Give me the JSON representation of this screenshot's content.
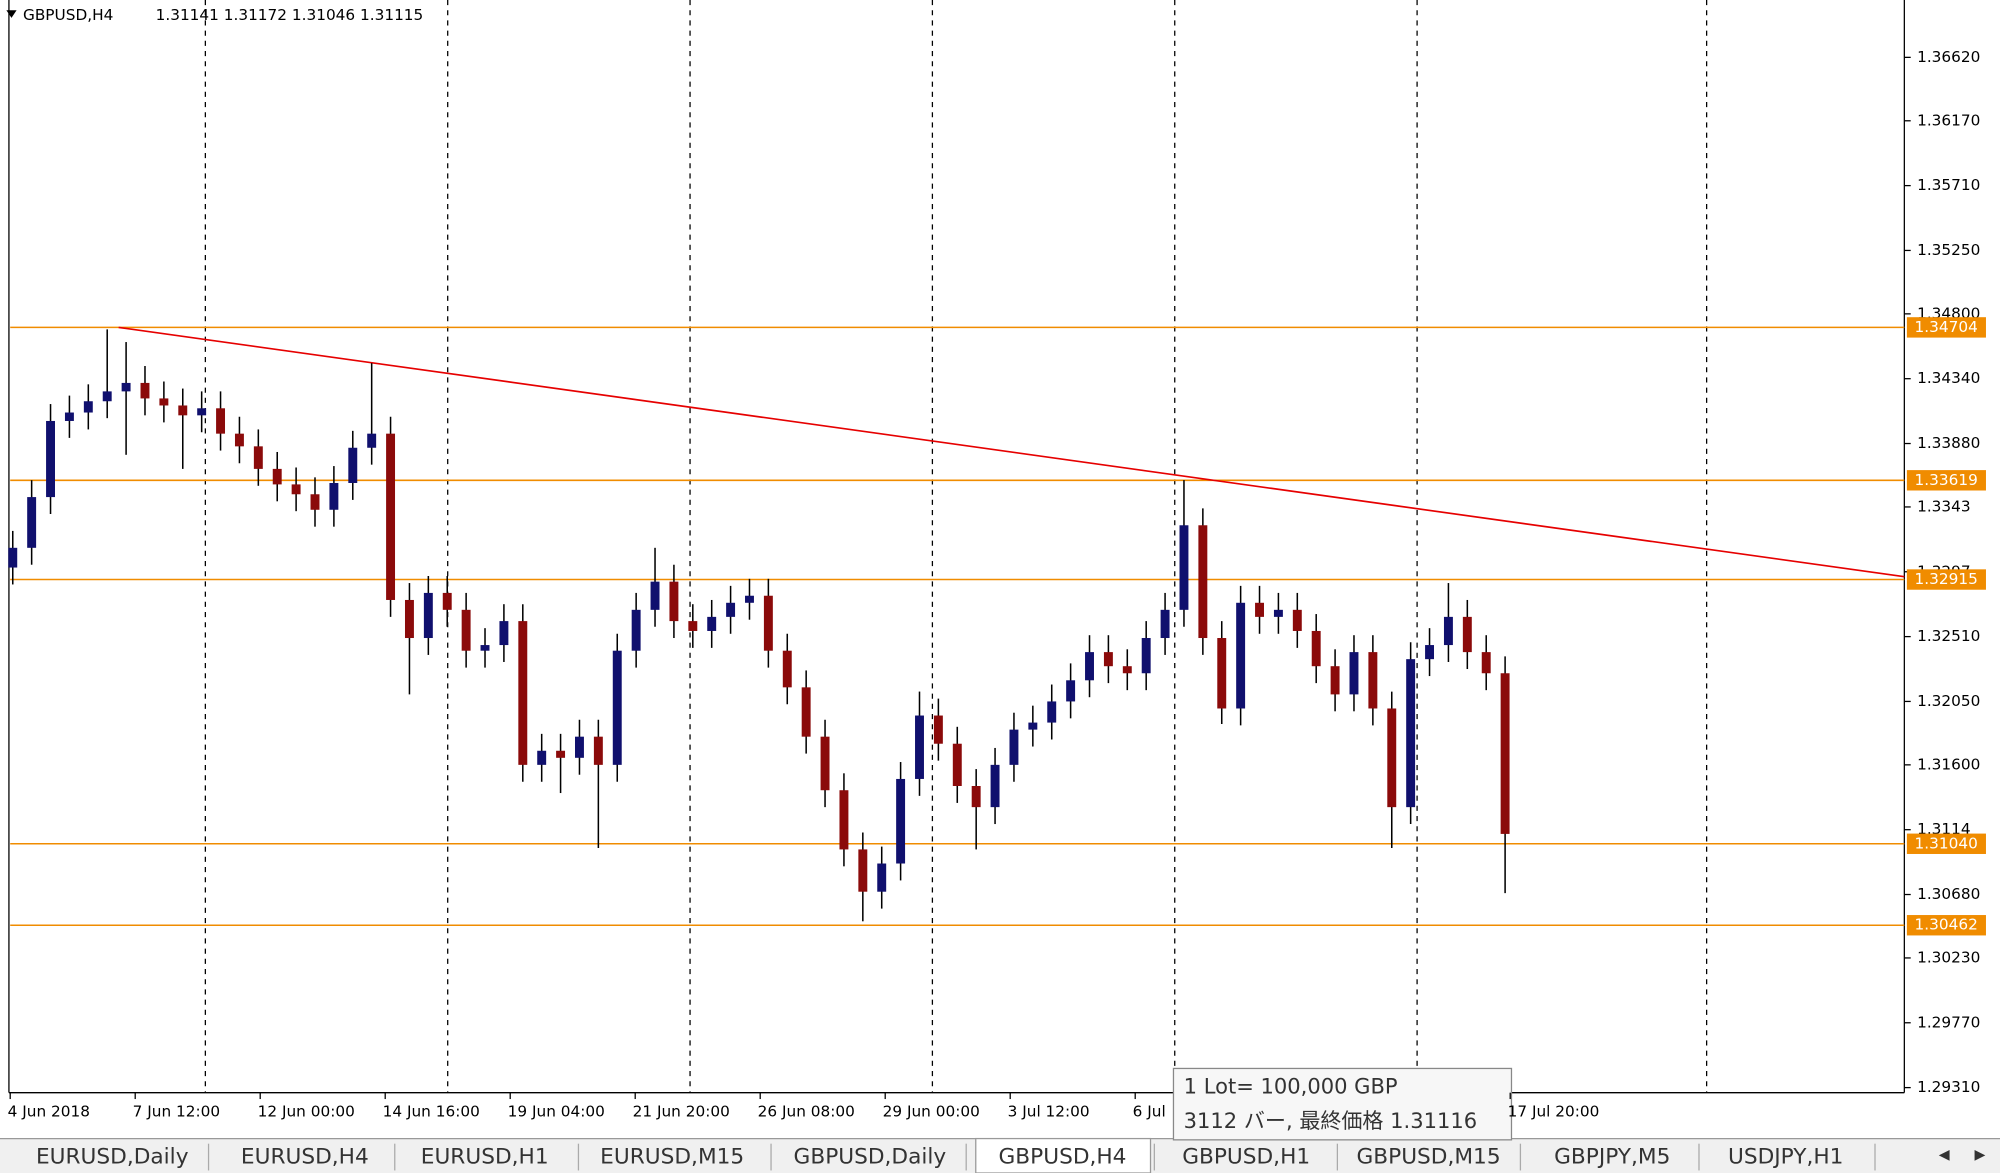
{
  "header": {
    "symbol": "GBPUSD,H4",
    "ohlc": "1.31141 1.31172 1.31046 1.31115"
  },
  "chart": {
    "ylim": [
      1.29274,
      1.37027
    ],
    "yticks": [
      {
        "value": 1.3662,
        "label": "1.36620"
      },
      {
        "value": 1.3617,
        "label": "1.36170"
      },
      {
        "value": 1.3571,
        "label": "1.35710"
      },
      {
        "value": 1.3525,
        "label": "1.35250"
      },
      {
        "value": 1.348,
        "label": "1.34800"
      },
      {
        "value": 1.3434,
        "label": "1.34340"
      },
      {
        "value": 1.3388,
        "label": "1.33880"
      },
      1.3343,
      1.3297,
      {
        "value": 1.3251,
        "label": "1.32510"
      },
      {
        "value": 1.3205,
        "label": "1.32050"
      },
      {
        "value": 1.316,
        "label": "1.31600"
      },
      1.3114,
      {
        "value": 1.3068,
        "label": "1.30680"
      },
      {
        "value": 1.3023,
        "label": "1.30230"
      },
      {
        "value": 1.2977,
        "label": "1.29770"
      },
      {
        "value": 1.2931,
        "label": "1.29310"
      }
    ],
    "time_labels": [
      "4 Jun 2018",
      "7 Jun 12:00",
      "12 Jun 00:00",
      "14 Jun 16:00",
      "19 Jun 04:00",
      "21 Jun 20:00",
      "26 Jun 08:00",
      "29 Jun 00:00",
      "3 Jul 12:00",
      "6 Jul",
      null,
      null,
      "17 Jul 20:00"
    ],
    "bull_color": "#10106e",
    "bear_color": "#8b0a0a",
    "open": [
      1.33,
      1.3314,
      1.335,
      1.3404,
      1.341,
      1.3418,
      1.3425,
      1.3431,
      1.342,
      1.3415,
      1.3408,
      1.3413,
      1.3395,
      1.3386,
      1.337,
      1.3359,
      1.3352,
      1.3341,
      1.336,
      1.3385,
      1.3395,
      1.3277,
      1.325,
      1.3282,
      1.327,
      1.3241,
      1.3245,
      1.3262,
      1.316,
      1.317,
      1.3165,
      1.318,
      1.316,
      1.3241,
      1.327,
      1.329,
      1.3262,
      1.3255,
      1.3265,
      1.3275,
      1.328,
      1.3241,
      1.3215,
      1.318,
      1.3142,
      1.31,
      1.307,
      1.309,
      1.315,
      1.3195,
      1.3175,
      1.3145,
      1.313,
      1.316,
      1.3185,
      1.319,
      1.3205,
      1.322,
      1.324,
      1.323,
      1.3225,
      1.325,
      1.327,
      1.333,
      1.325,
      1.32,
      1.3275,
      1.3265,
      1.327,
      1.3255,
      1.323,
      1.321,
      1.324,
      1.32,
      1.313,
      1.3235,
      1.3245,
      1.3265,
      1.324,
      1.3225
    ],
    "high": [
      1.3326,
      1.3362,
      1.3416,
      1.3422,
      1.343,
      1.3469,
      1.346,
      1.3443,
      1.3432,
      1.3427,
      1.3425,
      1.3425,
      1.3407,
      1.3398,
      1.3382,
      1.3371,
      1.3364,
      1.3372,
      1.3397,
      1.3445,
      1.3407,
      1.3289,
      1.3294,
      1.3294,
      1.3282,
      1.3257,
      1.3274,
      1.3274,
      1.3182,
      1.3182,
      1.3192,
      1.3192,
      1.3253,
      1.3282,
      1.3314,
      1.3302,
      1.3274,
      1.3277,
      1.3287,
      1.3292,
      1.3292,
      1.3253,
      1.3227,
      1.3192,
      1.3154,
      1.3112,
      1.3102,
      1.3162,
      1.3212,
      1.3207,
      1.3187,
      1.3157,
      1.3172,
      1.3197,
      1.3202,
      1.3217,
      1.3232,
      1.3252,
      1.3252,
      1.3242,
      1.3262,
      1.3282,
      1.3362,
      1.3342,
      1.3262,
      1.3287,
      1.3287,
      1.3282,
      1.3282,
      1.3267,
      1.3242,
      1.3252,
      1.3252,
      1.3212,
      1.3247,
      1.3257,
      1.3289,
      1.3277,
      1.3252,
      1.3237
    ],
    "low": [
      1.3288,
      1.3302,
      1.3338,
      1.3392,
      1.3398,
      1.3406,
      1.338,
      1.3408,
      1.3403,
      1.337,
      1.3396,
      1.3383,
      1.3374,
      1.3358,
      1.3347,
      1.334,
      1.3329,
      1.3329,
      1.3348,
      1.3373,
      1.3265,
      1.321,
      1.3238,
      1.3258,
      1.3229,
      1.3229,
      1.3233,
      1.3148,
      1.3148,
      1.314,
      1.3153,
      1.3101,
      1.3148,
      1.3229,
      1.3258,
      1.325,
      1.3243,
      1.3243,
      1.3253,
      1.3263,
      1.3229,
      1.3203,
      1.3168,
      1.313,
      1.3088,
      1.3049,
      1.3058,
      1.3078,
      1.3138,
      1.3163,
      1.3133,
      1.31,
      1.3118,
      1.3148,
      1.3173,
      1.3178,
      1.3193,
      1.3208,
      1.3218,
      1.3213,
      1.3213,
      1.3238,
      1.3258,
      1.3238,
      1.3189,
      1.3188,
      1.3253,
      1.3253,
      1.3243,
      1.3218,
      1.3198,
      1.3198,
      1.3188,
      1.3101,
      1.3118,
      1.3223,
      1.3233,
      1.3228,
      1.3213,
      1.3069
    ],
    "close": [
      1.3314,
      1.335,
      1.3404,
      1.341,
      1.3418,
      1.3425,
      1.3431,
      1.342,
      1.3415,
      1.3408,
      1.3413,
      1.3395,
      1.3386,
      1.337,
      1.3359,
      1.3352,
      1.3341,
      1.336,
      1.3385,
      1.3395,
      1.3277,
      1.325,
      1.3282,
      1.327,
      1.3241,
      1.3245,
      1.3262,
      1.316,
      1.317,
      1.3165,
      1.318,
      1.316,
      1.3241,
      1.327,
      1.329,
      1.3262,
      1.3255,
      1.3265,
      1.3275,
      1.328,
      1.3241,
      1.3215,
      1.318,
      1.3142,
      1.31,
      1.307,
      1.309,
      1.315,
      1.3195,
      1.3175,
      1.3145,
      1.313,
      1.316,
      1.3185,
      1.319,
      1.3205,
      1.322,
      1.324,
      1.323,
      1.3225,
      1.325,
      1.327,
      1.333,
      1.325,
      1.32,
      1.3275,
      1.3265,
      1.327,
      1.3255,
      1.323,
      1.321,
      1.324,
      1.32,
      1.313,
      1.3235,
      1.3245,
      1.3265,
      1.324,
      1.3225,
      1.3111
    ],
    "levels": [
      1.34704,
      1.33619,
      1.32915,
      {
        "value": 1.3104,
        "label": "1.31040"
      },
      1.30462
    ],
    "level_color": "#f08c00",
    "trendline": {
      "values": [
        1.34704,
        1.32935
      ],
      "color": "#e60000"
    }
  },
  "tooltip": {
    "line1": "1 Lot= 100,000 GBP",
    "line2": "3112 バー, 最終価格 1.31116"
  },
  "tabs": [
    "EURUSD,Daily",
    "EURUSD,H4",
    "EURUSD,H1",
    "EURUSD,M15",
    "GBPUSD,Daily",
    "GBPUSD,H4",
    "GBPUSD,H1",
    "GBPUSD,M15",
    "GBPJPY,M5",
    "USDJPY,H1"
  ]
}
